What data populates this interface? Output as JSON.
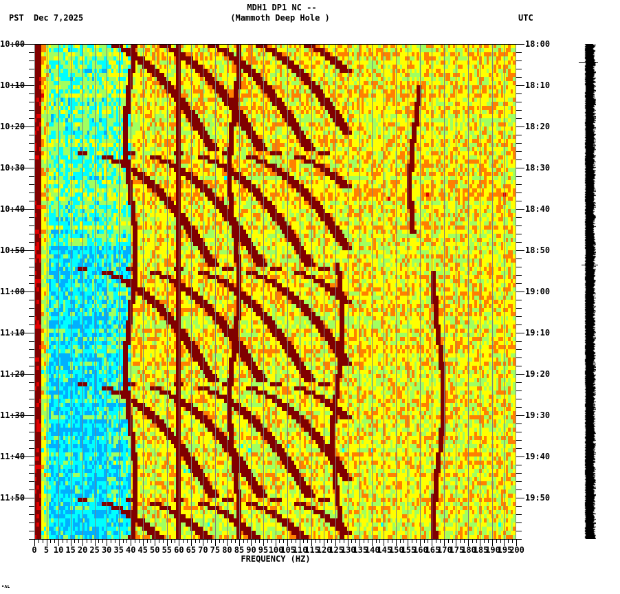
{
  "header": {
    "station_line": "MDH1 DP1 NC --",
    "station_name": "(Mammoth Deep Hole )",
    "left_timezone": "PST",
    "date": "Dec 7,2025",
    "right_timezone": "UTC"
  },
  "footer": {
    "logo_mark": "∙ʌʟ"
  },
  "colors": {
    "dark_red": "#800000",
    "red": "#e00000",
    "orange": "#ff8000",
    "yellow": "#ffff00",
    "green_yellow": "#a0ff60",
    "cyan": "#00ffff",
    "light_blue": "#00b0ff",
    "grid": "#808080",
    "trace": "#000000"
  },
  "chart_data": {
    "type": "heatmap",
    "title": "MDH1 DP1 NC -- (Mammoth Deep Hole )",
    "subtitle": "Dec 7,2025",
    "xlabel": "FREQUENCY (HZ)",
    "ylabel_left": "PST",
    "ylabel_right": "UTC",
    "xlim": [
      0,
      200
    ],
    "x_ticks": [
      0,
      5,
      10,
      15,
      20,
      25,
      30,
      35,
      40,
      45,
      50,
      55,
      60,
      65,
      70,
      75,
      80,
      85,
      90,
      95,
      100,
      105,
      110,
      115,
      120,
      125,
      130,
      135,
      140,
      145,
      150,
      155,
      160,
      165,
      170,
      175,
      180,
      185,
      190,
      195,
      200
    ],
    "y_ticks_left": [
      "10:00",
      "10:10",
      "10:20",
      "10:30",
      "10:40",
      "10:50",
      "11:00",
      "11:10",
      "11:20",
      "11:30",
      "11:40",
      "11:50"
    ],
    "y_ticks_right": [
      "18:00",
      "18:10",
      "18:20",
      "18:30",
      "18:40",
      "18:50",
      "19:00",
      "19:10",
      "19:20",
      "19:30",
      "19:40",
      "19:50"
    ],
    "time_range_minutes": 120,
    "grid": "vertical lines every 5 Hz",
    "colormap": "jet (blue low power → dark red high power)",
    "features": {
      "constant_line_hz": 60,
      "low_freq_energy_hz": [
        0,
        3
      ],
      "sweep_period_minutes": 28,
      "sweep_slope_hz_per_min": 4.2,
      "sweep_starts_hz": [
        20,
        40,
        60,
        80,
        100,
        120
      ],
      "wandering_lines": [
        {
          "center_hz": 40,
          "from_min": 0,
          "to_min": 120
        },
        {
          "center_hz": 83,
          "from_min": 0,
          "to_min": 120
        },
        {
          "center_hz": 126,
          "from_min": 53,
          "to_min": 120
        },
        {
          "center_hz": 168,
          "from_min": 55,
          "to_min": 120
        },
        {
          "center_hz": 158,
          "from_min": 10,
          "to_min": 45
        }
      ],
      "quiet_region_hz": [
        5,
        40
      ]
    }
  }
}
